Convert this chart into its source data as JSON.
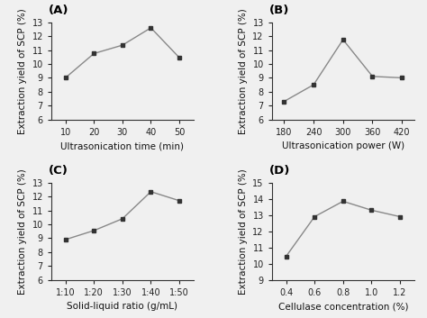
{
  "A": {
    "x": [
      10,
      20,
      30,
      40,
      50
    ],
    "y": [
      9.0,
      10.75,
      11.35,
      12.6,
      10.45
    ],
    "xlabel": "Ultrasonication time (min)",
    "ylabel": "Extraction yield of SCP (%)",
    "ylim": [
      6,
      13
    ],
    "yticks": [
      6,
      7,
      8,
      9,
      10,
      11,
      12,
      13
    ],
    "xticks": [
      10,
      20,
      30,
      40,
      50
    ],
    "label": "(A)"
  },
  "B": {
    "x": [
      180,
      240,
      300,
      360,
      420
    ],
    "y": [
      7.3,
      8.5,
      11.75,
      9.1,
      9.0
    ],
    "xlabel": "Ultrasonication power (W)",
    "ylabel": "Extraction yield of SCP (%)",
    "ylim": [
      6,
      13
    ],
    "yticks": [
      6,
      7,
      8,
      9,
      10,
      11,
      12,
      13
    ],
    "xticks": [
      180,
      240,
      300,
      360,
      420
    ],
    "label": "(B)"
  },
  "C": {
    "x": [
      1,
      2,
      3,
      4,
      5
    ],
    "xticklabels": [
      "1:10",
      "1:20",
      "1:30",
      "1:40",
      "1:50"
    ],
    "y": [
      8.9,
      9.55,
      10.4,
      12.35,
      11.7
    ],
    "xlabel": "Solid-liquid ratio (g/mL)",
    "ylabel": "Extraction yield of SCP (%)",
    "ylim": [
      6,
      13
    ],
    "yticks": [
      6,
      7,
      8,
      9,
      10,
      11,
      12,
      13
    ],
    "label": "(C)"
  },
  "D": {
    "x": [
      0.4,
      0.6,
      0.8,
      1.0,
      1.2
    ],
    "y": [
      10.45,
      12.9,
      13.85,
      13.3,
      12.9
    ],
    "xlabel": "Cellulase concentration (%)",
    "ylabel": "Extraction yield of SCP (%)",
    "ylim": [
      9,
      15
    ],
    "yticks": [
      9,
      10,
      11,
      12,
      13,
      14,
      15
    ],
    "xticks": [
      0.4,
      0.6,
      0.8,
      1.0,
      1.2
    ],
    "label": "(D)"
  },
  "line_color": "#888888",
  "marker": "s",
  "markersize": 3.5,
  "marker_facecolor": "#333333",
  "marker_edgecolor": "#333333",
  "linewidth": 1.0,
  "label_fontsize": 7.5,
  "tick_fontsize": 7.0,
  "panel_label_fontsize": 9.5,
  "bg_color": "#f0f0f0"
}
